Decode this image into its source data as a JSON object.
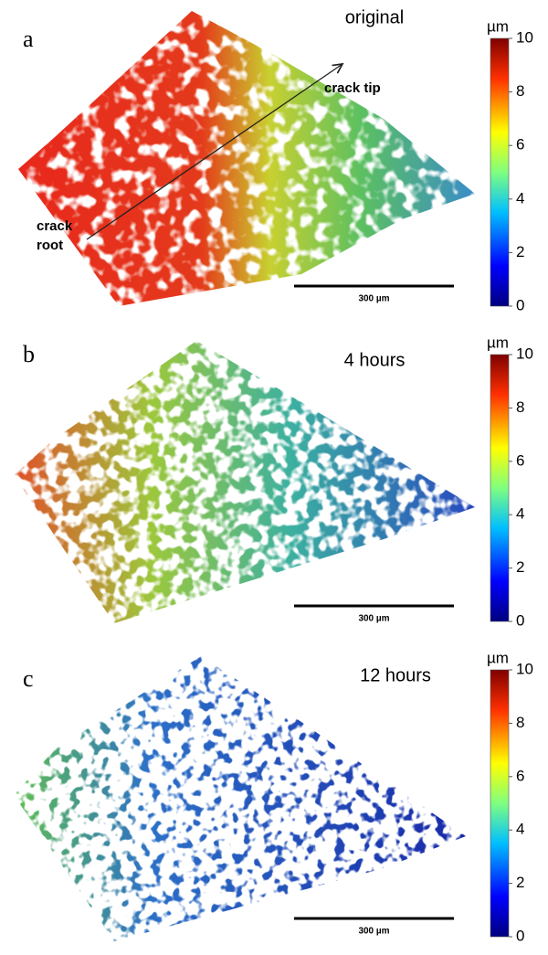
{
  "panels": [
    {
      "label": "a",
      "title": "original",
      "colorbar": {
        "unit": "µm",
        "ticks": [
          0,
          2,
          4,
          6,
          8,
          10
        ]
      },
      "scale_bar": "300 µm",
      "annotations": {
        "crack_tip": "crack tip",
        "crack_root": [
          "crack",
          "root"
        ]
      }
    },
    {
      "label": "b",
      "title": "4 hours",
      "colorbar": {
        "unit": "µm",
        "ticks": [
          0,
          2,
          4,
          6,
          8,
          10
        ]
      },
      "scale_bar": "300 µm"
    },
    {
      "label": "c",
      "title": "12 hours",
      "colorbar": {
        "unit": "µm",
        "ticks": [
          0,
          2,
          4,
          6,
          8,
          10
        ]
      },
      "scale_bar": "300 µm"
    }
  ]
}
